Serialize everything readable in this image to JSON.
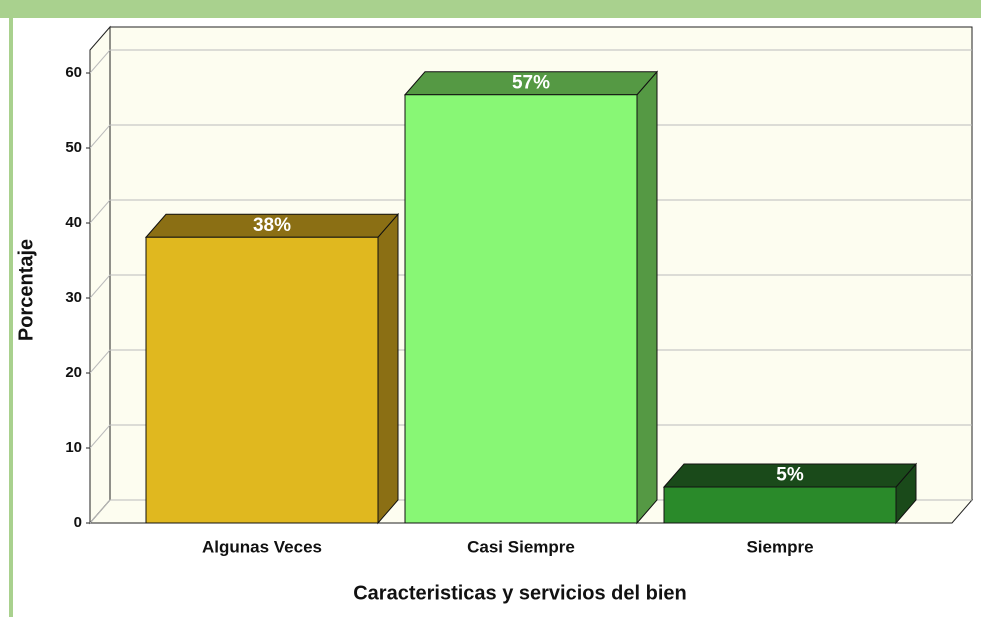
{
  "chart_data": {
    "type": "bar3d",
    "x_label": "Caracteristicas y servicios del bien",
    "y_label": "Porcentaje",
    "categories": [
      "Algunas Veces",
      "Casi Siempre",
      "Siempre"
    ],
    "values": [
      38.1,
      57.1,
      4.8
    ],
    "value_labels": [
      "38%",
      "57%",
      "5%"
    ],
    "colors": [
      "#e0b81f",
      "#88f775",
      "#2a8a2a"
    ],
    "side_colors": [
      "#8b6f14",
      "#559944",
      "#1a4a1a"
    ],
    "ylim": [
      0,
      60
    ],
    "yticks": [
      0,
      10,
      20,
      30,
      40,
      50,
      60
    ],
    "grid": true
  }
}
